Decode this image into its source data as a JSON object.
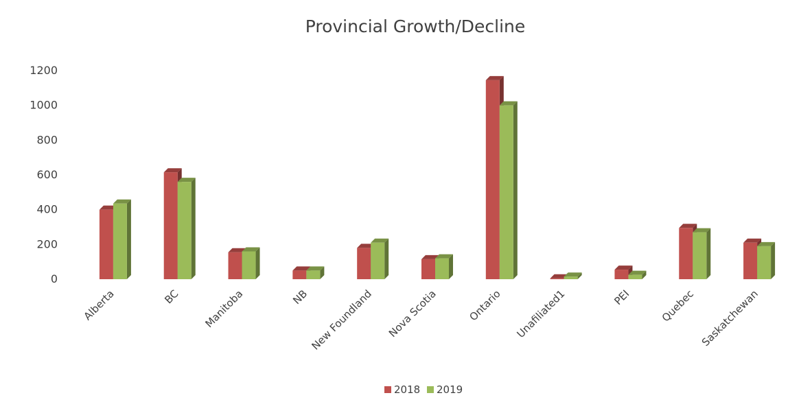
{
  "chart_data": {
    "type": "bar",
    "title": "Provincial Growth/Decline",
    "xlabel": "",
    "ylabel": "",
    "ylim": [
      0,
      1200
    ],
    "yticks": [
      0,
      200,
      400,
      600,
      800,
      1000,
      1200
    ],
    "grid": false,
    "legend_position": "bottom",
    "style": "3d-column",
    "categories": [
      "Alberta",
      "BC",
      "Manitoba",
      "NB",
      "New Foundland",
      "Nova Scotia",
      "Ontario",
      "Unafiliated1",
      "PEI",
      "Quebec",
      "Saskatchewan"
    ],
    "series": [
      {
        "name": "2018",
        "color": "#c0504d",
        "values": [
          400,
          615,
          155,
          50,
          180,
          115,
          1145,
          5,
          55,
          295,
          210
        ]
      },
      {
        "name": "2019",
        "color": "#9bbb59",
        "values": [
          435,
          560,
          160,
          50,
          210,
          120,
          1000,
          15,
          25,
          270,
          190
        ]
      }
    ]
  }
}
